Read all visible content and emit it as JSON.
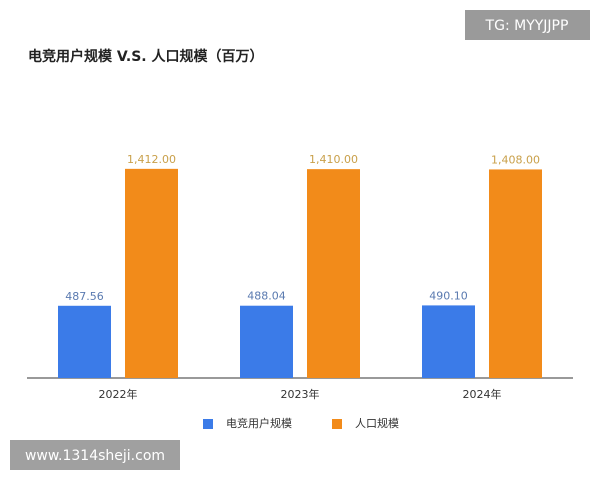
{
  "chart_data": {
    "type": "bar",
    "title": "电竞用户规模 V.S. 人口规模（百万）",
    "categories": [
      "2022年",
      "2023年",
      "2024年"
    ],
    "series": [
      {
        "name": "电竞用户规模",
        "color": "#3b7be8",
        "values": [
          487.56,
          488.04,
          490.1
        ],
        "value_labels": [
          "487.56",
          "488.04",
          "490.10"
        ]
      },
      {
        "name": "人口规模",
        "color": "#f28b1a",
        "values": [
          1412,
          1410,
          1408
        ],
        "value_labels": [
          "1,412.00",
          "1,410.00",
          "1,408.00"
        ]
      }
    ],
    "ylim": [
      0,
      1600
    ],
    "grid": false,
    "legend": "bottom"
  },
  "watermarks": [
    "TG: MYYJJPP",
    "www.1314sheji.com"
  ]
}
